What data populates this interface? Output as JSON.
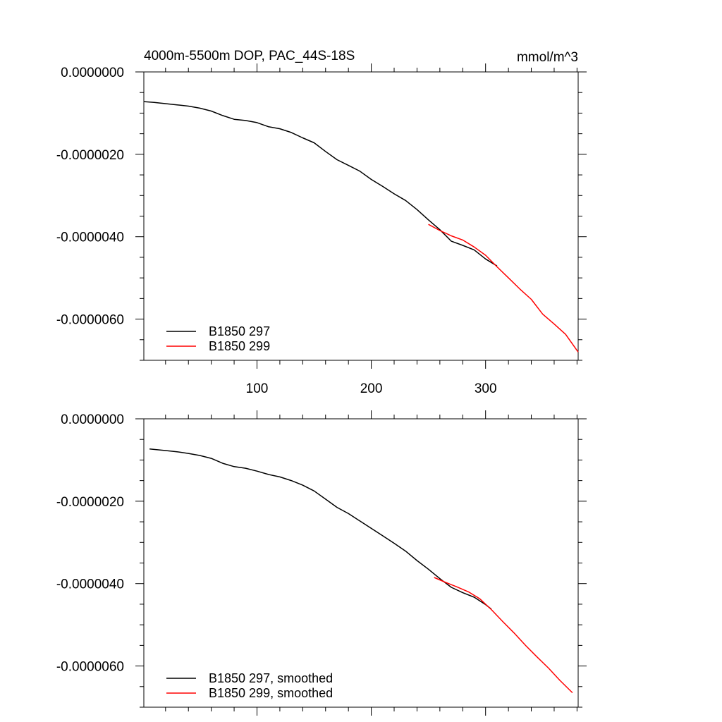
{
  "chart_data": [
    {
      "type": "line",
      "title": "4000m-5500m DOP, PAC_44S-18S",
      "units": "mmol/m^3",
      "xlim": [
        1,
        381
      ],
      "ylim": [
        -7e-06,
        0.0
      ],
      "xticks": [
        100,
        200,
        300
      ],
      "xticklabels": [
        "100",
        "200",
        "300"
      ],
      "yticks": [
        0.0,
        -2e-06,
        -4e-06,
        -6e-06
      ],
      "yticklabels": [
        "0.0000000",
        "-0.0000020",
        "-0.0000040",
        "-0.0000060"
      ],
      "legend_position": "bottom-left",
      "series": [
        {
          "name": "B1850 297",
          "color": "#000000",
          "x": [
            1,
            10,
            20,
            30,
            40,
            50,
            60,
            70,
            80,
            90,
            100,
            110,
            120,
            130,
            140,
            150,
            160,
            170,
            180,
            190,
            200,
            210,
            220,
            230,
            240,
            250,
            260,
            270,
            280,
            290,
            300,
            310
          ],
          "y": [
            -7.2e-07,
            -7.4e-07,
            -7.7e-07,
            -8e-07,
            -8.3e-07,
            -8.8e-07,
            -9.5e-07,
            -1.06e-06,
            -1.15e-06,
            -1.18e-06,
            -1.23e-06,
            -1.33e-06,
            -1.38e-06,
            -1.47e-06,
            -1.6e-06,
            -1.72e-06,
            -1.93e-06,
            -2.13e-06,
            -2.27e-06,
            -2.41e-06,
            -2.61e-06,
            -2.78e-06,
            -2.96e-06,
            -3.12e-06,
            -3.34e-06,
            -3.59e-06,
            -3.83e-06,
            -4.11e-06,
            -4.21e-06,
            -4.32e-06,
            -4.54e-06,
            -4.71e-06
          ]
        },
        {
          "name": "B1850 299",
          "color": "#ff0000",
          "x": [
            250,
            260,
            270,
            280,
            290,
            300,
            310,
            320,
            330,
            340,
            350,
            360,
            370,
            381
          ],
          "y": [
            -3.7e-06,
            -3.85e-06,
            -3.98e-06,
            -4.08e-06,
            -4.25e-06,
            -4.45e-06,
            -4.73e-06,
            -5e-06,
            -5.27e-06,
            -5.52e-06,
            -5.88e-06,
            -6.12e-06,
            -6.37e-06,
            -6.8e-06
          ]
        }
      ]
    },
    {
      "type": "line",
      "xlim": [
        1,
        381
      ],
      "ylim": [
        -7e-06,
        0.0
      ],
      "xticks": [
        100,
        200,
        300
      ],
      "yticks": [
        0.0,
        -2e-06,
        -4e-06,
        -6e-06
      ],
      "yticklabels": [
        "0.0000000",
        "-0.0000020",
        "-0.0000040",
        "-0.0000060"
      ],
      "legend_position": "bottom-left",
      "series": [
        {
          "name": "B1850 297, smoothed",
          "color": "#000000",
          "x": [
            6,
            20,
            30,
            40,
            50,
            60,
            70,
            80,
            90,
            100,
            110,
            120,
            130,
            140,
            150,
            160,
            170,
            180,
            190,
            200,
            210,
            220,
            230,
            240,
            250,
            260,
            270,
            280,
            290,
            300,
            305
          ],
          "y": [
            -7.3e-07,
            -7.7e-07,
            -8e-07,
            -8.4e-07,
            -8.9e-07,
            -9.6e-07,
            -1.08e-06,
            -1.16e-06,
            -1.2e-06,
            -1.27e-06,
            -1.35e-06,
            -1.41e-06,
            -1.5e-06,
            -1.61e-06,
            -1.75e-06,
            -1.95e-06,
            -2.15e-06,
            -2.3e-06,
            -2.48e-06,
            -2.66e-06,
            -2.84e-06,
            -3.02e-06,
            -3.21e-06,
            -3.44e-06,
            -3.65e-06,
            -3.88e-06,
            -4.09e-06,
            -4.22e-06,
            -4.33e-06,
            -4.51e-06,
            -4.62e-06
          ]
        },
        {
          "name": "B1850 299, smoothed",
          "color": "#ff0000",
          "x": [
            255,
            265,
            275,
            285,
            295,
            305,
            315,
            325,
            335,
            345,
            355,
            365,
            376
          ],
          "y": [
            -3.85e-06,
            -3.97e-06,
            -4.08e-06,
            -4.2e-06,
            -4.37e-06,
            -4.63e-06,
            -4.92e-06,
            -5.2e-06,
            -5.5e-06,
            -5.78e-06,
            -6.05e-06,
            -6.35e-06,
            -6.65e-06
          ]
        }
      ]
    }
  ]
}
